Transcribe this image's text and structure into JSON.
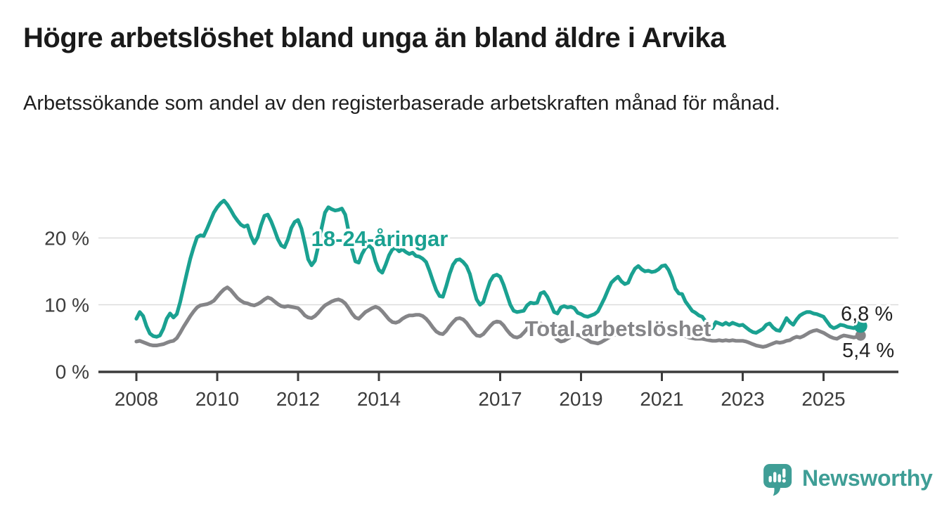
{
  "header": {
    "title": "Högre arbetslöshet bland unga än bland äldre i Arvika",
    "subtitle": "Arbetssökande som andel av den registerbaserade arbetskraften månad för månad."
  },
  "chart_data": {
    "type": "line",
    "title": "Högre arbetslöshet bland unga än bland äldre i Arvika",
    "subtitle": "Arbetssökande som andel av den registerbaserade arbetskraften månad för månad.",
    "unit": "%",
    "grid": "horizontal",
    "legend_position": "inline-labels",
    "x_start_year": 2008,
    "x_months_per_point": 1,
    "x_end": "2025-12",
    "ylim": [
      0,
      27
    ],
    "yticks": [
      {
        "value": 0,
        "label": "0 %"
      },
      {
        "value": 10,
        "label": "10 %"
      },
      {
        "value": 20,
        "label": "20 %"
      }
    ],
    "xticks": [
      {
        "year": 2008,
        "label": "2008"
      },
      {
        "year": 2010,
        "label": "2010"
      },
      {
        "year": 2012,
        "label": "2012"
      },
      {
        "year": 2014,
        "label": "2014"
      },
      {
        "year": 2017,
        "label": "2017"
      },
      {
        "year": 2019,
        "label": "2019"
      },
      {
        "year": 2021,
        "label": "2021"
      },
      {
        "year": 2023,
        "label": "2023"
      },
      {
        "year": 2025,
        "label": "2025"
      }
    ],
    "series": [
      {
        "name": "Total arbetslöshet",
        "color": "#858588",
        "end_label": "5,4 %",
        "end_value": 5.4,
        "values": [
          4.5,
          4.6,
          4.4,
          4.2,
          4.0,
          3.9,
          3.9,
          4.0,
          4.1,
          4.3,
          4.5,
          4.6,
          5.0,
          5.8,
          6.7,
          7.5,
          8.3,
          9.0,
          9.6,
          9.9,
          10.0,
          10.1,
          10.3,
          10.6,
          11.2,
          11.8,
          12.3,
          12.6,
          12.2,
          11.6,
          11.0,
          10.6,
          10.3,
          10.2,
          10.0,
          9.9,
          10.1,
          10.4,
          10.8,
          11.1,
          10.9,
          10.5,
          10.1,
          9.8,
          9.7,
          9.8,
          9.7,
          9.6,
          9.5,
          9.0,
          8.4,
          8.1,
          8.0,
          8.3,
          8.8,
          9.4,
          9.9,
          10.2,
          10.5,
          10.7,
          10.8,
          10.6,
          10.2,
          9.5,
          8.7,
          8.1,
          7.9,
          8.4,
          8.9,
          9.2,
          9.5,
          9.7,
          9.5,
          9.0,
          8.4,
          7.8,
          7.4,
          7.3,
          7.5,
          7.9,
          8.2,
          8.4,
          8.4,
          8.5,
          8.5,
          8.3,
          7.9,
          7.3,
          6.6,
          6.0,
          5.7,
          5.6,
          6.1,
          6.8,
          7.4,
          7.9,
          8.0,
          7.8,
          7.3,
          6.6,
          5.9,
          5.4,
          5.3,
          5.6,
          6.2,
          6.8,
          7.3,
          7.5,
          7.4,
          6.9,
          6.2,
          5.6,
          5.2,
          5.1,
          5.3,
          5.8,
          6.4,
          6.8,
          7.0,
          7.2,
          7.2,
          7.0,
          6.5,
          5.9,
          5.3,
          4.8,
          4.5,
          4.6,
          4.9,
          5.2,
          5.4,
          5.5,
          5.3,
          5.0,
          4.7,
          4.4,
          4.3,
          4.2,
          4.4,
          4.7,
          5.0,
          5.3,
          5.5,
          5.7,
          5.8,
          5.8,
          6.0,
          6.3,
          6.6,
          6.8,
          6.8,
          6.7,
          6.6,
          6.4,
          6.3,
          6.3,
          6.4,
          6.4,
          6.2,
          6.0,
          5.8,
          5.6,
          5.5,
          5.3,
          5.1,
          5.0,
          4.9,
          4.9,
          4.9,
          4.8,
          4.7,
          4.6,
          4.6,
          4.7,
          4.6,
          4.7,
          4.6,
          4.7,
          4.6,
          4.6,
          4.6,
          4.5,
          4.3,
          4.1,
          3.9,
          3.8,
          3.7,
          3.8,
          4.0,
          4.2,
          4.4,
          4.3,
          4.4,
          4.6,
          4.7,
          5.0,
          5.2,
          5.1,
          5.3,
          5.6,
          5.9,
          6.1,
          6.2,
          6.0,
          5.8,
          5.5,
          5.2,
          5.0,
          4.9,
          5.2,
          5.4,
          5.3,
          5.2,
          5.1,
          5.2,
          5.4
        ]
      },
      {
        "name": "18-24-åringar",
        "color": "#1aa191",
        "end_label": "6,8 %",
        "end_value": 6.8,
        "values": [
          7.9,
          8.9,
          8.3,
          6.8,
          5.7,
          5.3,
          5.2,
          5.4,
          6.4,
          7.9,
          8.7,
          8.1,
          8.6,
          10.4,
          12.6,
          14.8,
          16.9,
          18.6,
          20.1,
          20.4,
          20.3,
          21.4,
          22.6,
          23.8,
          24.6,
          25.2,
          25.6,
          25.0,
          24.2,
          23.3,
          22.6,
          22.0,
          21.7,
          21.9,
          20.3,
          19.2,
          20.1,
          21.9,
          23.3,
          23.5,
          22.5,
          21.2,
          19.8,
          18.9,
          18.6,
          19.8,
          21.5,
          22.4,
          22.7,
          21.4,
          19.2,
          16.8,
          15.9,
          16.6,
          18.8,
          21.5,
          23.8,
          24.6,
          24.3,
          24.1,
          24.2,
          24.4,
          23.5,
          21.0,
          18.3,
          16.5,
          16.3,
          17.6,
          18.5,
          18.9,
          18.4,
          16.5,
          15.2,
          14.8,
          16.0,
          17.4,
          18.3,
          18.5,
          18.0,
          18.3,
          17.9,
          17.6,
          17.8,
          17.3,
          17.2,
          16.9,
          16.4,
          15.1,
          13.6,
          12.2,
          11.3,
          11.2,
          12.8,
          14.6,
          16.0,
          16.7,
          16.8,
          16.4,
          15.8,
          14.6,
          12.6,
          10.8,
          10.0,
          10.4,
          12.0,
          13.5,
          14.3,
          14.5,
          14.2,
          13.0,
          11.5,
          10.0,
          9.1,
          8.9,
          9.0,
          9.1,
          9.9,
          10.3,
          10.2,
          10.3,
          11.7,
          11.9,
          11.2,
          10.1,
          8.9,
          8.7,
          9.6,
          9.8,
          9.6,
          9.7,
          9.5,
          8.8,
          8.6,
          8.3,
          8.2,
          8.4,
          8.6,
          9.0,
          10.0,
          11.0,
          12.2,
          13.3,
          13.8,
          14.2,
          13.5,
          13.1,
          13.3,
          14.5,
          15.4,
          15.8,
          15.3,
          15.0,
          15.1,
          14.9,
          15.0,
          15.3,
          15.8,
          15.9,
          15.2,
          14.0,
          12.4,
          11.7,
          11.6,
          10.5,
          9.8,
          9.1,
          8.8,
          8.4,
          8.2,
          7.5,
          6.7,
          6.5,
          7.4,
          7.2,
          7.0,
          7.3,
          7.0,
          7.3,
          7.1,
          6.9,
          7.0,
          6.6,
          6.2,
          5.9,
          5.8,
          6.1,
          6.4,
          7.0,
          7.2,
          6.6,
          6.2,
          6.1,
          7.0,
          8.0,
          7.4,
          7.0,
          7.8,
          8.4,
          8.7,
          8.9,
          8.9,
          8.7,
          8.6,
          8.4,
          8.2,
          7.5,
          6.8,
          6.5,
          6.7,
          7.0,
          6.9,
          6.7,
          6.6,
          6.5,
          6.7,
          6.8
        ]
      }
    ],
    "colors": {
      "grid": "#dcdcdc",
      "axis": "#3c3c3c",
      "tick_text": "#3c3c3c",
      "value_text": "#222222"
    }
  },
  "footer": {
    "brand": "Newsworthy",
    "brand_color": "#3f9e96"
  }
}
